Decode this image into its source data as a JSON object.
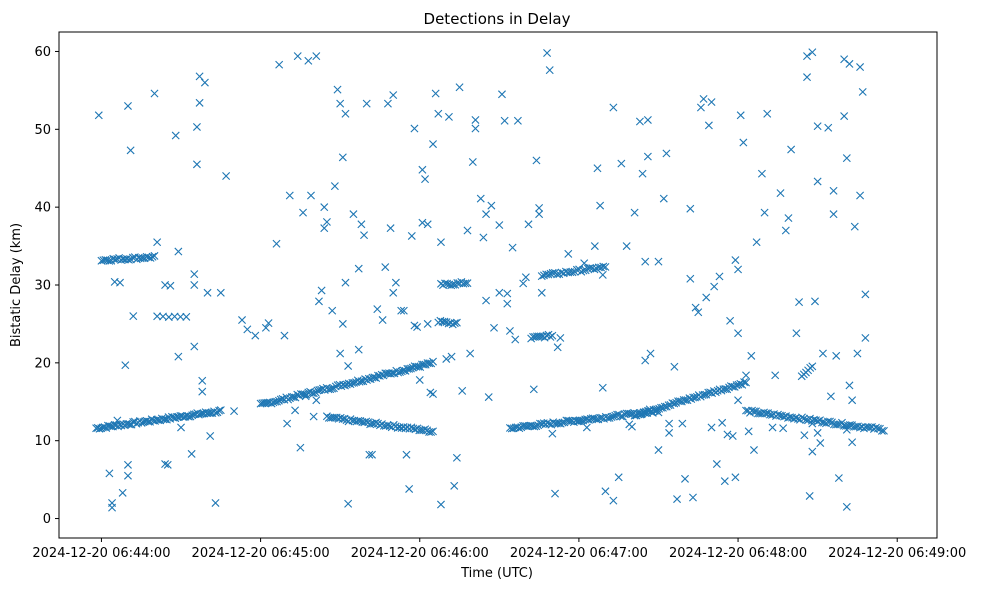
{
  "chart_data": {
    "type": "scatter",
    "title": "Detections in Delay",
    "xlabel": "Time (UTC)",
    "ylabel": "Bistatic Delay (km)",
    "marker": "x",
    "color": "#1f77b4",
    "xlim_seconds": [
      -16,
      315
    ],
    "ylim": [
      -2.5,
      62.5
    ],
    "x_ticks": [
      {
        "value": 0,
        "label": "2024-12-20 06:44:00"
      },
      {
        "value": 60,
        "label": "2024-12-20 06:45:00"
      },
      {
        "value": 120,
        "label": "2024-12-20 06:46:00"
      },
      {
        "value": 180,
        "label": "2024-12-20 06:47:00"
      },
      {
        "value": 240,
        "label": "2024-12-20 06:48:00"
      },
      {
        "value": 300,
        "label": "2024-12-20 06:49:00"
      }
    ],
    "y_ticks": [
      {
        "value": 0,
        "label": "0"
      },
      {
        "value": 10,
        "label": "10"
      },
      {
        "value": 20,
        "label": "20"
      },
      {
        "value": 30,
        "label": "30"
      },
      {
        "value": 40,
        "label": "40"
      },
      {
        "value": 50,
        "label": "50"
      },
      {
        "value": 60,
        "label": "60"
      }
    ],
    "tracks": [
      {
        "name": "track-a",
        "t_start": -2,
        "t_end": 45,
        "y_start": 11.6,
        "y_end": 13.8,
        "count": 75
      },
      {
        "name": "track-b",
        "t_start": 60,
        "t_end": 125,
        "y_start": 14.6,
        "y_end": 20.0,
        "count": 95
      },
      {
        "name": "track-c",
        "t_start": 85,
        "t_end": 125,
        "y_start": 13.0,
        "y_end": 11.2,
        "count": 55
      },
      {
        "name": "track-d",
        "t_start": 0,
        "t_end": 20,
        "y_start": 33.2,
        "y_end": 33.6,
        "count": 28
      },
      {
        "name": "track-e",
        "t_start": 128,
        "t_end": 138,
        "y_start": 30.0,
        "y_end": 30.3,
        "count": 14
      },
      {
        "name": "track-f",
        "t_start": 127,
        "t_end": 134,
        "y_start": 25.3,
        "y_end": 25.0,
        "count": 10
      },
      {
        "name": "track-g",
        "t_start": 154,
        "t_end": 210,
        "y_start": 11.6,
        "y_end": 13.8,
        "count": 80
      },
      {
        "name": "track-h",
        "t_start": 201,
        "t_end": 243,
        "y_start": 13.3,
        "y_end": 17.5,
        "count": 60
      },
      {
        "name": "track-i",
        "t_start": 243,
        "t_end": 295,
        "y_start": 13.8,
        "y_end": 11.4,
        "count": 70
      },
      {
        "name": "track-j",
        "t_start": 166,
        "t_end": 190,
        "y_start": 31.2,
        "y_end": 32.3,
        "count": 30
      },
      {
        "name": "track-k",
        "t_start": 162,
        "t_end": 170,
        "y_start": 23.2,
        "y_end": 23.5,
        "count": 12
      },
      {
        "name": "track-l",
        "t_start": 21,
        "t_end": 32,
        "y_start": 26.0,
        "y_end": 26.0,
        "count": 6
      },
      {
        "name": "track-m",
        "t_start": 264,
        "t_end": 268,
        "y_start": 18.4,
        "y_end": 19.6,
        "count": 6
      }
    ],
    "points": [
      [
        -1,
        51.8
      ],
      [
        3,
        5.8
      ],
      [
        4,
        2.0
      ],
      [
        4,
        1.4
      ],
      [
        6,
        12.6
      ],
      [
        8,
        3.3
      ],
      [
        10,
        53.0
      ],
      [
        11,
        47.3
      ],
      [
        12,
        26.0
      ],
      [
        9,
        19.7
      ],
      [
        10,
        6.9
      ],
      [
        10,
        5.5
      ],
      [
        5,
        30.4
      ],
      [
        7,
        30.3
      ],
      [
        20,
        54.6
      ],
      [
        21,
        35.5
      ],
      [
        24,
        30.0
      ],
      [
        26,
        29.9
      ],
      [
        25,
        6.9
      ],
      [
        24,
        7.0
      ],
      [
        28,
        49.2
      ],
      [
        29,
        34.3
      ],
      [
        29,
        20.8
      ],
      [
        30,
        11.7
      ],
      [
        34,
        8.3
      ],
      [
        35,
        22.1
      ],
      [
        35,
        31.4
      ],
      [
        35,
        30.0
      ],
      [
        36,
        45.5
      ],
      [
        36,
        50.3
      ],
      [
        37,
        53.4
      ],
      [
        37,
        56.8
      ],
      [
        38,
        17.7
      ],
      [
        38,
        16.3
      ],
      [
        39,
        56.0
      ],
      [
        40,
        29.0
      ],
      [
        41,
        10.6
      ],
      [
        43,
        2.0
      ],
      [
        45,
        29.0
      ],
      [
        47,
        44.0
      ],
      [
        50,
        13.8
      ],
      [
        53,
        25.5
      ],
      [
        55,
        24.3
      ],
      [
        58,
        23.5
      ],
      [
        62,
        24.5
      ],
      [
        63,
        25.1
      ],
      [
        66,
        35.3
      ],
      [
        67,
        58.3
      ],
      [
        69,
        23.5
      ],
      [
        71,
        41.5
      ],
      [
        75,
        9.1
      ],
      [
        74,
        59.4
      ],
      [
        76,
        39.3
      ],
      [
        78,
        58.8
      ],
      [
        79,
        41.5
      ],
      [
        81,
        59.4
      ],
      [
        82,
        27.9
      ],
      [
        83,
        29.3
      ],
      [
        84,
        37.3
      ],
      [
        84,
        40.0
      ],
      [
        85,
        38.1
      ],
      [
        87,
        26.7
      ],
      [
        88,
        42.7
      ],
      [
        89,
        55.1
      ],
      [
        90,
        53.3
      ],
      [
        90,
        21.2
      ],
      [
        91,
        46.4
      ],
      [
        91,
        25.0
      ],
      [
        92,
        52.0
      ],
      [
        92,
        30.3
      ],
      [
        93,
        1.9
      ],
      [
        93,
        19.6
      ],
      [
        95,
        39.1
      ],
      [
        97,
        21.7
      ],
      [
        97,
        32.1
      ],
      [
        98,
        37.8
      ],
      [
        99,
        36.4
      ],
      [
        100,
        53.3
      ],
      [
        101,
        8.2
      ],
      [
        102,
        8.2
      ],
      [
        104,
        26.9
      ],
      [
        106,
        25.5
      ],
      [
        107,
        32.3
      ],
      [
        108,
        53.3
      ],
      [
        109,
        37.3
      ],
      [
        110,
        54.4
      ],
      [
        110,
        29.0
      ],
      [
        111,
        30.3
      ],
      [
        113,
        26.7
      ],
      [
        114,
        26.7
      ],
      [
        115,
        8.2
      ],
      [
        116,
        3.8
      ],
      [
        117,
        36.3
      ],
      [
        118,
        50.1
      ],
      [
        119,
        24.6
      ],
      [
        120,
        17.8
      ],
      [
        121,
        38.0
      ],
      [
        121,
        44.8
      ],
      [
        122,
        43.6
      ],
      [
        123,
        37.8
      ],
      [
        123,
        25.0
      ],
      [
        124,
        16.2
      ],
      [
        125,
        48.1
      ],
      [
        126,
        54.6
      ],
      [
        127,
        52.0
      ],
      [
        128,
        35.5
      ],
      [
        128,
        1.8
      ],
      [
        131,
        51.6
      ],
      [
        132,
        20.8
      ],
      [
        133,
        4.2
      ],
      [
        134,
        7.8
      ],
      [
        135,
        55.4
      ],
      [
        136,
        16.4
      ],
      [
        138,
        37.0
      ],
      [
        139,
        21.2
      ],
      [
        140,
        45.8
      ],
      [
        141,
        51.2
      ],
      [
        141,
        50.1
      ],
      [
        143,
        41.1
      ],
      [
        144,
        36.1
      ],
      [
        145,
        39.1
      ],
      [
        146,
        15.6
      ],
      [
        147,
        40.2
      ],
      [
        148,
        24.5
      ],
      [
        150,
        37.7
      ],
      [
        151,
        54.5
      ],
      [
        152,
        51.1
      ],
      [
        153,
        28.9
      ],
      [
        153,
        27.6
      ],
      [
        154,
        24.1
      ],
      [
        155,
        34.8
      ],
      [
        156,
        23.0
      ],
      [
        157,
        51.1
      ],
      [
        159,
        30.2
      ],
      [
        161,
        37.8
      ],
      [
        163,
        16.6
      ],
      [
        164,
        46.0
      ],
      [
        165,
        39.1
      ],
      [
        165,
        39.9
      ],
      [
        166,
        29.0
      ],
      [
        168,
        59.8
      ],
      [
        169,
        57.6
      ],
      [
        170,
        10.9
      ],
      [
        171,
        3.2
      ],
      [
        172,
        22.0
      ],
      [
        173,
        23.2
      ],
      [
        176,
        34.0
      ],
      [
        180,
        12.5
      ],
      [
        182,
        32.8
      ],
      [
        183,
        11.7
      ],
      [
        186,
        35.0
      ],
      [
        187,
        45.0
      ],
      [
        188,
        40.2
      ],
      [
        189,
        31.3
      ],
      [
        189,
        16.8
      ],
      [
        190,
        3.5
      ],
      [
        193,
        52.8
      ],
      [
        193,
        2.3
      ],
      [
        195,
        5.3
      ],
      [
        196,
        45.6
      ],
      [
        198,
        35.0
      ],
      [
        199,
        12.1
      ],
      [
        200,
        11.8
      ],
      [
        201,
        39.3
      ],
      [
        203,
        51.0
      ],
      [
        204,
        44.3
      ],
      [
        205,
        33.0
      ],
      [
        205,
        20.3
      ],
      [
        206,
        46.5
      ],
      [
        206,
        51.2
      ],
      [
        207,
        21.2
      ],
      [
        210,
        8.8
      ],
      [
        212,
        41.1
      ],
      [
        213,
        46.9
      ],
      [
        214,
        12.2
      ],
      [
        214,
        11.0
      ],
      [
        216,
        19.5
      ],
      [
        217,
        2.5
      ],
      [
        219,
        12.2
      ],
      [
        220,
        5.1
      ],
      [
        222,
        39.8
      ],
      [
        222,
        30.8
      ],
      [
        223,
        2.7
      ],
      [
        224,
        27.1
      ],
      [
        225,
        26.5
      ],
      [
        226,
        52.8
      ],
      [
        227,
        53.9
      ],
      [
        228,
        28.4
      ],
      [
        229,
        50.5
      ],
      [
        230,
        53.5
      ],
      [
        230,
        11.7
      ],
      [
        231,
        29.8
      ],
      [
        232,
        7.0
      ],
      [
        233,
        31.1
      ],
      [
        234,
        12.3
      ],
      [
        235,
        4.8
      ],
      [
        236,
        10.8
      ],
      [
        237,
        25.4
      ],
      [
        238,
        10.6
      ],
      [
        239,
        5.3
      ],
      [
        239,
        33.2
      ],
      [
        240,
        15.2
      ],
      [
        240,
        23.8
      ],
      [
        241,
        51.8
      ],
      [
        242,
        48.3
      ],
      [
        245,
        20.9
      ],
      [
        247,
        35.5
      ],
      [
        249,
        44.3
      ],
      [
        250,
        39.3
      ],
      [
        251,
        52.0
      ],
      [
        253,
        11.7
      ],
      [
        254,
        18.4
      ],
      [
        256,
        41.8
      ],
      [
        257,
        11.6
      ],
      [
        258,
        37.0
      ],
      [
        259,
        38.6
      ],
      [
        260,
        47.4
      ],
      [
        262,
        23.8
      ],
      [
        263,
        27.8
      ],
      [
        265,
        10.7
      ],
      [
        266,
        59.4
      ],
      [
        266,
        56.7
      ],
      [
        267,
        2.9
      ],
      [
        268,
        8.6
      ],
      [
        268,
        59.9
      ],
      [
        269,
        27.9
      ],
      [
        270,
        43.3
      ],
      [
        270,
        50.4
      ],
      [
        271,
        9.7
      ],
      [
        272,
        21.2
      ],
      [
        274,
        50.2
      ],
      [
        275,
        15.7
      ],
      [
        276,
        39.1
      ],
      [
        276,
        42.1
      ],
      [
        277,
        20.9
      ],
      [
        278,
        5.2
      ],
      [
        280,
        59.0
      ],
      [
        280,
        51.7
      ],
      [
        281,
        46.3
      ],
      [
        281,
        1.5
      ],
      [
        282,
        58.4
      ],
      [
        282,
        17.1
      ],
      [
        283,
        15.2
      ],
      [
        284,
        37.5
      ],
      [
        285,
        21.2
      ],
      [
        286,
        58.0
      ],
      [
        286,
        41.5
      ],
      [
        287,
        54.8
      ],
      [
        288,
        23.2
      ],
      [
        288,
        28.8
      ],
      [
        80,
        13.1
      ],
      [
        81,
        15.2
      ],
      [
        70,
        12.2
      ],
      [
        73,
        13.9
      ],
      [
        77,
        15.7
      ],
      [
        145,
        28.0
      ],
      [
        150,
        29.0
      ],
      [
        160,
        31.0
      ],
      [
        240,
        32.0
      ],
      [
        210,
        33.0
      ],
      [
        130,
        20.5
      ],
      [
        125,
        16.0
      ],
      [
        118,
        24.8
      ],
      [
        243,
        18.4
      ],
      [
        244,
        11.2
      ],
      [
        246,
        8.8
      ],
      [
        281,
        11.4
      ],
      [
        283,
        9.8
      ],
      [
        270,
        11.0
      ],
      [
        268,
        12.2
      ]
    ]
  }
}
